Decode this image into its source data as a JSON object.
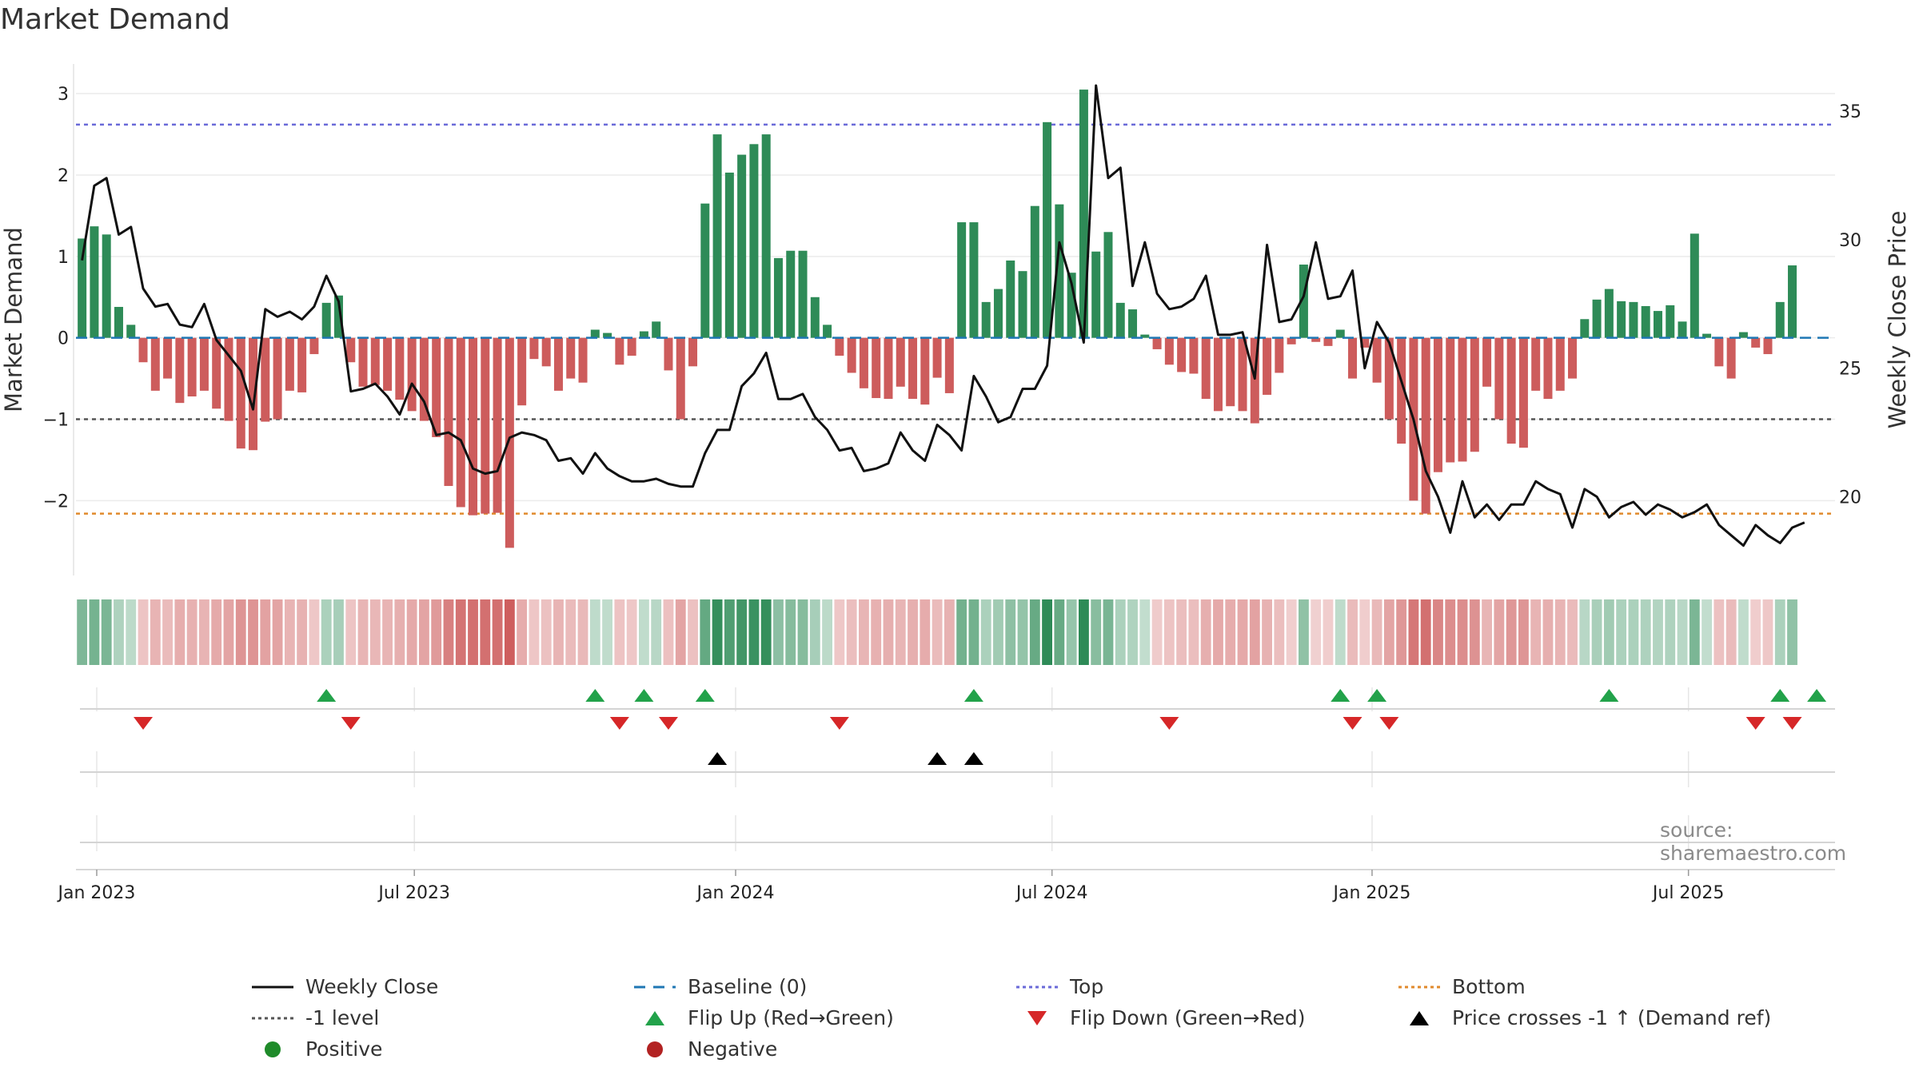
{
  "title": "Market Demand",
  "source": "source: sharemaestro.com",
  "colors": {
    "positive": "#2e8b57",
    "negative": "#cd5c5c",
    "close": "#111111",
    "baseline": "#1f77b4",
    "top": "#6a6ad8",
    "bottom": "#e08a2c",
    "level": "#555555",
    "flip_up": "#22a24a",
    "flip_down": "#d62728",
    "cross": "#000000",
    "legend_positive": "#1f8b2a",
    "legend_negative": "#b22222"
  },
  "chart_data": {
    "type": "bar+line",
    "title": "Market Demand",
    "ylabel_left": "Market Demand",
    "ylabel_right": "Weekly Close Price",
    "ylim_left": [
      -2.9,
      3.1
    ],
    "ylim_right": [
      17,
      36
    ],
    "yticks_left": [
      {
        "v": 3,
        "l": "3"
      },
      {
        "v": 2,
        "l": "2"
      },
      {
        "v": 1,
        "l": "1"
      },
      {
        "v": 0,
        "l": "0"
      },
      {
        "v": -1,
        "l": "−1"
      },
      {
        "v": -2,
        "l": "−2"
      }
    ],
    "yticks_right": [
      {
        "v": 35,
        "l": "35"
      },
      {
        "v": 30,
        "l": "30"
      },
      {
        "v": 25,
        "l": "25"
      },
      {
        "v": 20,
        "l": "20"
      }
    ],
    "xticks": [
      {
        "label": "Jan 2023",
        "week": 1.2
      },
      {
        "label": "Jul 2023",
        "week": 27.2
      },
      {
        "label": "Jan 2024",
        "week": 53.5
      },
      {
        "label": "Jul 2024",
        "week": 79.4
      },
      {
        "label": "Jan 2025",
        "week": 105.6
      },
      {
        "label": "Jul 2025",
        "week": 131.5
      }
    ],
    "n_weeks": 144,
    "reference_lines": {
      "top": 2.62,
      "bottom": -2.16,
      "level": -1,
      "baseline": 0
    },
    "demand": [
      1.22,
      1.37,
      1.27,
      0.38,
      0.16,
      -0.3,
      -0.65,
      -0.5,
      -0.8,
      -0.72,
      -0.65,
      -0.87,
      -1.02,
      -1.36,
      -1.38,
      -1.03,
      -1.0,
      -0.65,
      -0.67,
      -0.2,
      0.43,
      0.52,
      -0.3,
      -0.6,
      -0.58,
      -0.65,
      -0.76,
      -0.9,
      -1.02,
      -1.22,
      -1.82,
      -2.08,
      -2.18,
      -2.16,
      -2.15,
      -2.58,
      -0.83,
      -0.26,
      -0.35,
      -0.65,
      -0.5,
      -0.55,
      0.1,
      0.06,
      -0.33,
      -0.22,
      0.08,
      0.2,
      -0.4,
      -1.0,
      -0.35,
      1.65,
      2.5,
      2.03,
      2.25,
      2.38,
      2.5,
      0.98,
      1.07,
      1.07,
      0.5,
      0.16,
      -0.22,
      -0.43,
      -0.62,
      -0.74,
      -0.75,
      -0.6,
      -0.75,
      -0.82,
      -0.49,
      -0.68,
      1.42,
      1.42,
      0.44,
      0.6,
      0.95,
      0.82,
      1.62,
      2.65,
      1.64,
      0.8,
      3.05,
      1.06,
      1.3,
      0.43,
      0.35,
      0.04,
      -0.14,
      -0.33,
      -0.42,
      -0.44,
      -0.75,
      -0.9,
      -0.84,
      -0.9,
      -1.05,
      -0.7,
      -0.43,
      -0.08,
      0.9,
      -0.05,
      -0.1,
      0.1,
      -0.5,
      -0.12,
      -0.55,
      -1.0,
      -1.3,
      -2.0,
      -2.16,
      -1.65,
      -1.53,
      -1.52,
      -1.4,
      -0.6,
      -1.0,
      -1.3,
      -1.35,
      -0.65,
      -0.75,
      -0.65,
      -0.5,
      0.23,
      0.47,
      0.6,
      0.45,
      0.44,
      0.39,
      0.33,
      0.4,
      0.2,
      1.28,
      0.05,
      -0.35,
      -0.5,
      0.07,
      -0.12,
      -0.2,
      0.44,
      0.89
    ],
    "weekly_close": [
      29.2,
      32.1,
      32.4,
      30.2,
      30.5,
      28.1,
      27.4,
      27.5,
      26.7,
      26.6,
      27.5,
      26.1,
      25.5,
      24.9,
      23.4,
      27.3,
      27.0,
      27.2,
      26.9,
      27.4,
      28.6,
      27.6,
      24.1,
      24.2,
      24.4,
      23.9,
      23.2,
      24.4,
      23.7,
      22.4,
      22.5,
      22.2,
      21.1,
      20.9,
      21.0,
      22.3,
      22.5,
      22.4,
      22.2,
      21.4,
      21.5,
      20.9,
      21.7,
      21.1,
      20.8,
      20.6,
      20.6,
      20.7,
      20.5,
      20.4,
      20.4,
      21.7,
      22.6,
      22.6,
      24.3,
      24.8,
      25.6,
      23.8,
      23.8,
      24.0,
      23.1,
      22.6,
      21.8,
      21.9,
      21.0,
      21.1,
      21.3,
      22.5,
      21.8,
      21.4,
      22.8,
      22.4,
      21.8,
      24.7,
      23.9,
      22.9,
      23.1,
      24.2,
      24.2,
      25.1,
      29.9,
      28.3,
      26.0,
      36.0,
      32.4,
      32.8,
      28.2,
      29.9,
      27.9,
      27.3,
      27.4,
      27.7,
      28.6,
      26.3,
      26.3,
      26.4,
      24.6,
      29.8,
      26.8,
      26.9,
      27.8,
      29.9,
      27.7,
      27.8,
      28.8,
      25.0,
      26.8,
      26.0,
      24.5,
      23.0,
      21.0,
      20.0,
      18.6,
      20.6,
      19.2,
      19.7,
      19.1,
      19.7,
      19.7,
      20.6,
      20.3,
      20.1,
      18.8,
      20.3,
      20.0,
      19.2,
      19.6,
      19.8,
      19.3,
      19.7,
      19.5,
      19.2,
      19.4,
      19.7,
      18.9,
      18.5,
      18.1,
      18.9,
      18.5,
      18.2,
      18.8,
      19.0
    ],
    "flip_up_weeks": [
      20,
      42,
      46,
      51,
      73,
      103,
      106,
      125,
      139,
      142
    ],
    "flip_down_weeks": [
      5,
      22,
      44,
      48,
      62,
      89,
      104,
      107,
      137,
      140
    ],
    "price_cross_weeks": [
      52,
      70,
      73
    ]
  },
  "legend": [
    {
      "label": "Weekly Close",
      "icon": "solid-line"
    },
    {
      "label": "Baseline (0)",
      "icon": "dashed-line"
    },
    {
      "label": "Top",
      "icon": "dotted-line"
    },
    {
      "label": "Bottom",
      "icon": "dotted-line"
    },
    {
      "label": "-1 level",
      "icon": "dotted-line"
    },
    {
      "label": "Flip Up (Red→Green)",
      "icon": "triangle-up"
    },
    {
      "label": "Flip Down (Green→Red)",
      "icon": "triangle-down"
    },
    {
      "label": "Price crosses -1 ↑ (Demand ref)",
      "icon": "triangle-up"
    },
    {
      "label": "Positive",
      "icon": "circle"
    },
    {
      "label": "Negative",
      "icon": "circle"
    }
  ]
}
